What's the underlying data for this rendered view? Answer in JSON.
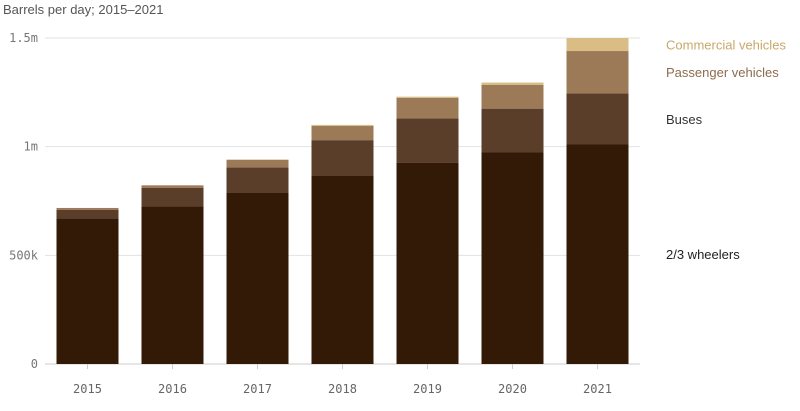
{
  "chart_data": {
    "type": "bar",
    "stacked": true,
    "subtitle": "Barrels per day; 2015–2021",
    "categories": [
      "2015",
      "2016",
      "2017",
      "2018",
      "2019",
      "2020",
      "2021"
    ],
    "series": [
      {
        "name": "2/3 wheelers",
        "color": "#331a07",
        "values": [
          670000,
          725000,
          790000,
          865000,
          925000,
          975000,
          1010000
        ]
      },
      {
        "name": "Buses",
        "color": "#5a3e2a",
        "values": [
          40000,
          85000,
          115000,
          165000,
          205000,
          200000,
          235000
        ]
      },
      {
        "name": "Passenger vehicles",
        "color": "#9c7a58",
        "values": [
          8000,
          12000,
          35000,
          65000,
          95000,
          110000,
          195000
        ]
      },
      {
        "name": "Commercial vehicles",
        "color": "#d9bd84",
        "values": [
          0,
          0,
          0,
          5000,
          5000,
          10000,
          60000
        ]
      }
    ],
    "ylim": [
      0,
      1500000
    ],
    "y_ticks": [
      {
        "value": 0,
        "label": "0"
      },
      {
        "value": 500000,
        "label": "500k"
      },
      {
        "value": 1000000,
        "label": "1m"
      },
      {
        "value": 1500000,
        "label": "1.5m"
      }
    ],
    "grid": true,
    "legend_position": "right"
  }
}
